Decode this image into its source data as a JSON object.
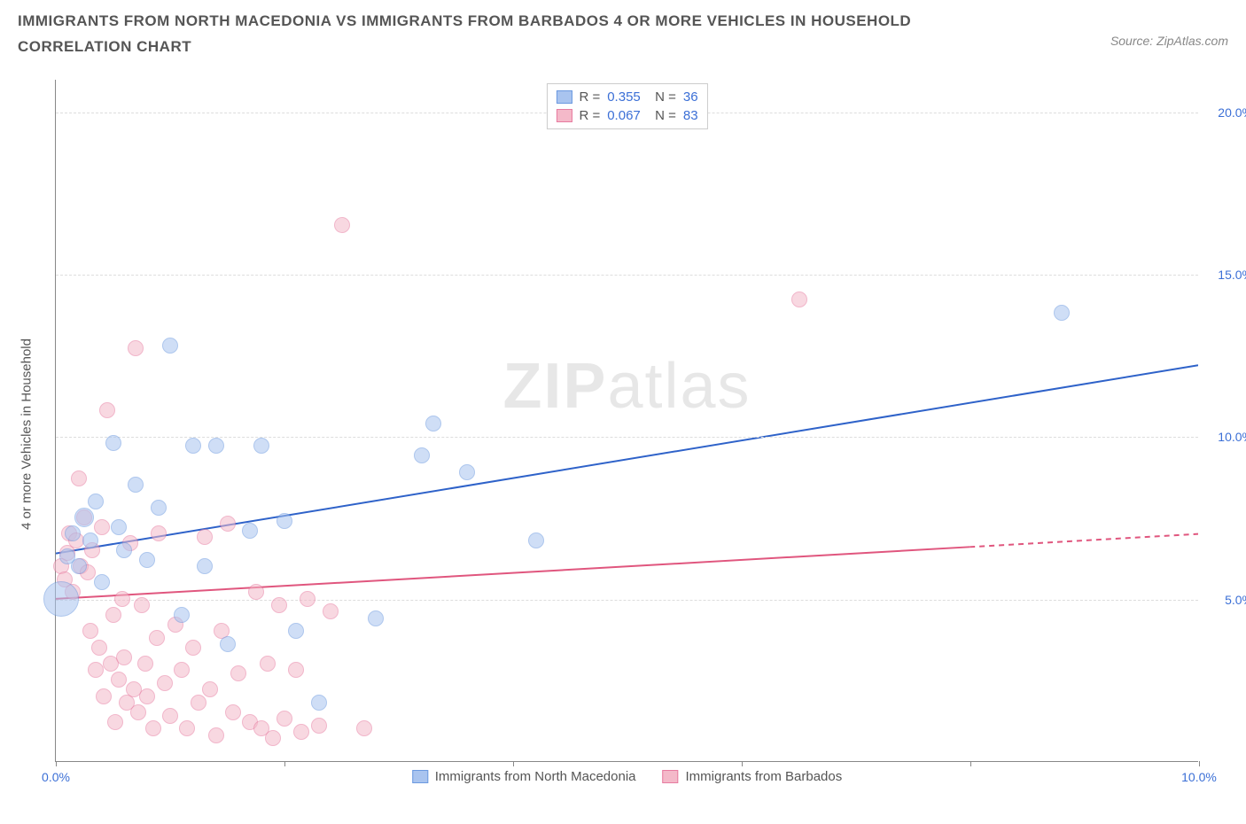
{
  "title": "IMMIGRANTS FROM NORTH MACEDONIA VS IMMIGRANTS FROM BARBADOS 4 OR MORE VEHICLES IN HOUSEHOLD CORRELATION CHART",
  "source": "Source: ZipAtlas.com",
  "ylabel": "4 or more Vehicles in Household",
  "watermark_bold": "ZIP",
  "watermark_light": "atlas",
  "chart": {
    "type": "scatter",
    "xlim": [
      0,
      10
    ],
    "ylim": [
      0,
      21
    ],
    "x_ticks": [
      0,
      2,
      4,
      6,
      8,
      10
    ],
    "x_tick_labels": {
      "0": "0.0%",
      "10": "10.0%"
    },
    "y_ticks": [
      5,
      10,
      15,
      20
    ],
    "y_tick_labels": {
      "5": "5.0%",
      "10": "10.0%",
      "15": "15.0%",
      "20": "20.0%"
    },
    "background_color": "#ffffff",
    "grid_color": "#dddddd",
    "axis_color": "#888888",
    "tick_label_color": "#3b6fd6",
    "text_color": "#555555",
    "series": [
      {
        "name": "Immigrants from North Macedonia",
        "key": "macedonia",
        "fill": "#a9c4ef",
        "stroke": "#6b99e0",
        "fill_opacity": 0.55,
        "marker_radius": 9,
        "R": "0.355",
        "N": "36",
        "trend": {
          "x1": 0,
          "y1": 6.4,
          "x2": 10,
          "y2": 12.2,
          "color": "#2e62c9",
          "width": 2,
          "dash_from_x": null
        },
        "points": [
          [
            0.05,
            5.0,
            20
          ],
          [
            0.1,
            6.3,
            9
          ],
          [
            0.15,
            7.0,
            9
          ],
          [
            0.2,
            6.0,
            9
          ],
          [
            0.25,
            7.5,
            11
          ],
          [
            0.3,
            6.8,
            9
          ],
          [
            0.35,
            8.0,
            9
          ],
          [
            0.4,
            5.5,
            9
          ],
          [
            0.5,
            9.8,
            9
          ],
          [
            0.55,
            7.2,
            9
          ],
          [
            0.6,
            6.5,
            9
          ],
          [
            0.7,
            8.5,
            9
          ],
          [
            0.8,
            6.2,
            9
          ],
          [
            0.9,
            7.8,
            9
          ],
          [
            1.0,
            12.8,
            9
          ],
          [
            1.1,
            4.5,
            9
          ],
          [
            1.2,
            9.7,
            9
          ],
          [
            1.3,
            6.0,
            9
          ],
          [
            1.4,
            9.7,
            9
          ],
          [
            1.5,
            3.6,
            9
          ],
          [
            1.7,
            7.1,
            9
          ],
          [
            1.8,
            9.7,
            9
          ],
          [
            2.0,
            7.4,
            9
          ],
          [
            2.1,
            4.0,
            9
          ],
          [
            2.3,
            1.8,
            9
          ],
          [
            2.8,
            4.4,
            9
          ],
          [
            3.2,
            9.4,
            9
          ],
          [
            3.3,
            10.4,
            9
          ],
          [
            3.6,
            8.9,
            9
          ],
          [
            4.2,
            6.8,
            9
          ],
          [
            8.8,
            13.8,
            9
          ]
        ]
      },
      {
        "name": "Immigrants from Barbados",
        "key": "barbados",
        "fill": "#f4b9c9",
        "stroke": "#e77ba0",
        "fill_opacity": 0.55,
        "marker_radius": 9,
        "R": "0.067",
        "N": "83",
        "trend": {
          "x1": 0,
          "y1": 5.0,
          "x2": 10,
          "y2": 7.0,
          "color": "#e0567e",
          "width": 2,
          "dash_from_x": 8.0
        },
        "points": [
          [
            0.05,
            6.0,
            9
          ],
          [
            0.08,
            5.6,
            9
          ],
          [
            0.1,
            6.4,
            9
          ],
          [
            0.12,
            7.0,
            9
          ],
          [
            0.15,
            5.2,
            9
          ],
          [
            0.18,
            6.8,
            9
          ],
          [
            0.2,
            8.7,
            9
          ],
          [
            0.22,
            6.0,
            9
          ],
          [
            0.25,
            7.5,
            9
          ],
          [
            0.28,
            5.8,
            9
          ],
          [
            0.3,
            4.0,
            9
          ],
          [
            0.32,
            6.5,
            9
          ],
          [
            0.35,
            2.8,
            9
          ],
          [
            0.38,
            3.5,
            9
          ],
          [
            0.4,
            7.2,
            9
          ],
          [
            0.42,
            2.0,
            9
          ],
          [
            0.45,
            10.8,
            9
          ],
          [
            0.48,
            3.0,
            9
          ],
          [
            0.5,
            4.5,
            9
          ],
          [
            0.52,
            1.2,
            9
          ],
          [
            0.55,
            2.5,
            9
          ],
          [
            0.58,
            5.0,
            9
          ],
          [
            0.6,
            3.2,
            9
          ],
          [
            0.62,
            1.8,
            9
          ],
          [
            0.65,
            6.7,
            9
          ],
          [
            0.68,
            2.2,
            9
          ],
          [
            0.7,
            12.7,
            9
          ],
          [
            0.72,
            1.5,
            9
          ],
          [
            0.75,
            4.8,
            9
          ],
          [
            0.78,
            3.0,
            9
          ],
          [
            0.8,
            2.0,
            9
          ],
          [
            0.85,
            1.0,
            9
          ],
          [
            0.88,
            3.8,
            9
          ],
          [
            0.9,
            7.0,
            9
          ],
          [
            0.95,
            2.4,
            9
          ],
          [
            1.0,
            1.4,
            9
          ],
          [
            1.05,
            4.2,
            9
          ],
          [
            1.1,
            2.8,
            9
          ],
          [
            1.15,
            1.0,
            9
          ],
          [
            1.2,
            3.5,
            9
          ],
          [
            1.25,
            1.8,
            9
          ],
          [
            1.3,
            6.9,
            9
          ],
          [
            1.35,
            2.2,
            9
          ],
          [
            1.4,
            0.8,
            9
          ],
          [
            1.45,
            4.0,
            9
          ],
          [
            1.5,
            7.3,
            9
          ],
          [
            1.55,
            1.5,
            9
          ],
          [
            1.6,
            2.7,
            9
          ],
          [
            1.7,
            1.2,
            9
          ],
          [
            1.75,
            5.2,
            9
          ],
          [
            1.8,
            1.0,
            9
          ],
          [
            1.85,
            3.0,
            9
          ],
          [
            1.9,
            0.7,
            9
          ],
          [
            1.95,
            4.8,
            9
          ],
          [
            2.0,
            1.3,
            9
          ],
          [
            2.1,
            2.8,
            9
          ],
          [
            2.15,
            0.9,
            9
          ],
          [
            2.2,
            5.0,
            9
          ],
          [
            2.3,
            1.1,
            9
          ],
          [
            2.4,
            4.6,
            9
          ],
          [
            2.5,
            16.5,
            9
          ],
          [
            2.7,
            1.0,
            9
          ],
          [
            6.5,
            14.2,
            9
          ]
        ]
      }
    ]
  },
  "legend_bottom": [
    {
      "label": "Immigrants from North Macedonia",
      "fill": "#a9c4ef",
      "stroke": "#6b99e0"
    },
    {
      "label": "Immigrants from Barbados",
      "fill": "#f4b9c9",
      "stroke": "#e77ba0"
    }
  ]
}
